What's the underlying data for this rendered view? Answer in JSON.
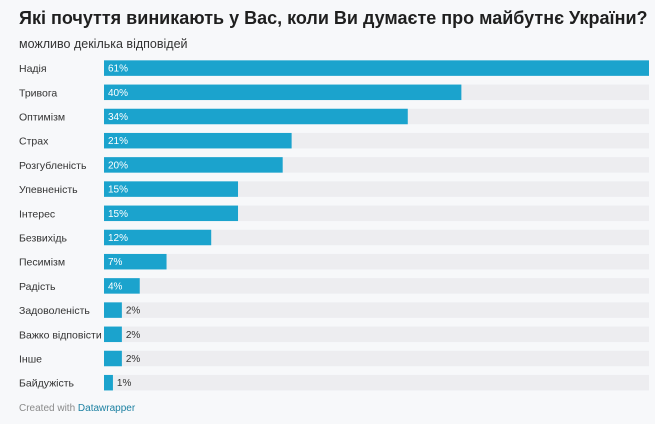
{
  "header": {
    "title": "Які почуття виникають у Вас, коли Ви думаєте про майбутнє України?",
    "subtitle": "можливо декілька відповідей"
  },
  "footer": {
    "credit_prefix": "Created with",
    "credit_link": "Datawrapper"
  },
  "colors": {
    "bar": "#1ba3cd",
    "bar_label_inside": "#ffffff",
    "bar_label_outside": "#333333",
    "row_band": "#ededf0"
  },
  "chart_data": {
    "type": "bar",
    "orientation": "horizontal",
    "categories": [
      "Надія",
      "Тривога",
      "Оптимізм",
      "Страх",
      "Розгубленість",
      "Упевненість",
      "Інтерес",
      "Безвихідь",
      "Песимізм",
      "Радість",
      "Задоволеність",
      "Важко відповісти",
      "Інше",
      "Байдужість"
    ],
    "values": [
      61,
      40,
      34,
      21,
      20,
      15,
      15,
      12,
      7,
      4,
      2,
      2,
      2,
      1
    ],
    "value_labels": [
      "61%",
      "40%",
      "34%",
      "21%",
      "20%",
      "15%",
      "15%",
      "12%",
      "7%",
      "4%",
      "2%",
      "2%",
      "2%",
      "1%"
    ],
    "xlim": [
      0,
      61
    ]
  }
}
